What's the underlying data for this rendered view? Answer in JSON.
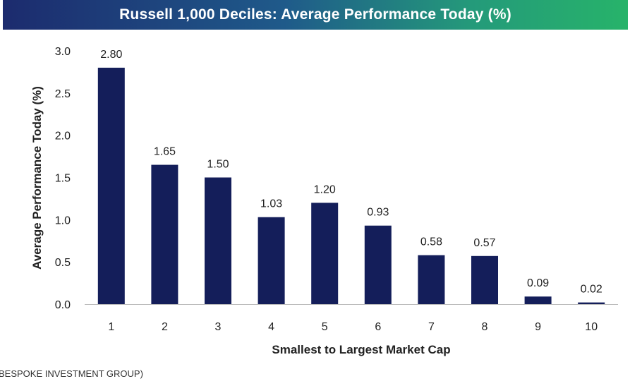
{
  "title": "Russell 1,000 Deciles: Average Performance Today (%)",
  "source_text": "BESPOKE INVESTMENT GROUP)",
  "colors": {
    "bar": "#141e5a",
    "axis": "#bdbdbd"
  },
  "chart_data": {
    "type": "bar",
    "title": "Russell 1,000 Deciles: Average Performance Today (%)",
    "xlabel": "Smallest to Largest Market Cap",
    "ylabel": "Average Performance Today (%)",
    "categories": [
      "1",
      "2",
      "3",
      "4",
      "5",
      "6",
      "7",
      "8",
      "9",
      "10"
    ],
    "values": [
      2.8,
      1.65,
      1.5,
      1.03,
      1.2,
      0.93,
      0.58,
      0.57,
      0.09,
      0.02
    ],
    "data_labels": [
      "2.80",
      "1.65",
      "1.50",
      "1.03",
      "1.20",
      "0.93",
      "0.58",
      "0.57",
      "0.09",
      "0.02"
    ],
    "yticks": [
      "0.0",
      "0.5",
      "1.0",
      "1.5",
      "2.0",
      "2.5",
      "3.0"
    ],
    "ylim": [
      0,
      3.0
    ],
    "grid": false,
    "legend": "none"
  }
}
